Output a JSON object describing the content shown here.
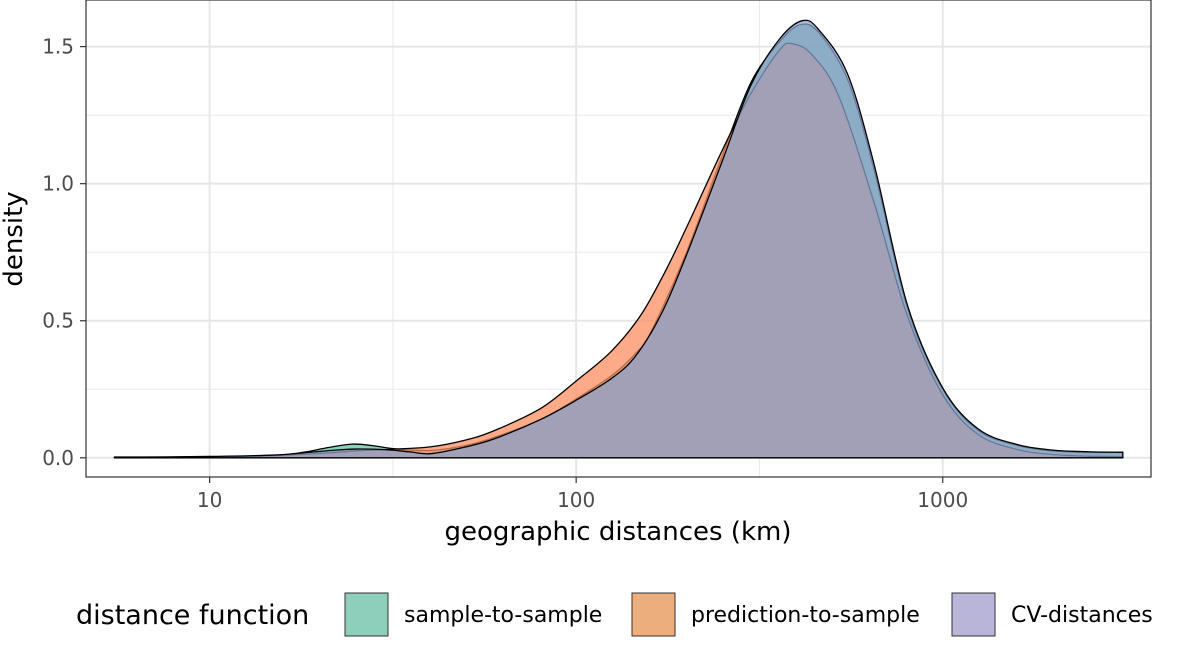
{
  "chart_data": {
    "type": "area",
    "title": "",
    "xlabel": "geographic distances (km)",
    "ylabel": "density",
    "x_scale": "log10",
    "xlim": [
      4.6,
      3700
    ],
    "ylim": [
      -0.07,
      1.67
    ],
    "x_ticks": [
      {
        "value": 10,
        "label": "10"
      },
      {
        "value": 100,
        "label": "100"
      },
      {
        "value": 1000,
        "label": "1000"
      }
    ],
    "y_ticks": [
      {
        "value": 0.0,
        "label": "0.0"
      },
      {
        "value": 0.5,
        "label": "0.5"
      },
      {
        "value": 1.0,
        "label": "1.0"
      },
      {
        "value": 1.5,
        "label": "1.5"
      }
    ],
    "grid": true,
    "legend": {
      "title": "distance function",
      "position": "bottom",
      "entries": [
        {
          "label": "sample-to-sample",
          "color": "#8ECFBC"
        },
        {
          "label": "prediction-to-sample",
          "color": "#EDAE7D"
        },
        {
          "label": "CV-distances",
          "color": "#B9B5D9"
        }
      ]
    },
    "series": [
      {
        "name": "sample-to-sample",
        "fill": "#66C2A5",
        "points": [
          [
            5.5,
            0.003
          ],
          [
            8,
            0.002
          ],
          [
            10,
            0.003
          ],
          [
            15,
            0.008
          ],
          [
            18,
            0.02
          ],
          [
            21,
            0.037
          ],
          [
            24.5,
            0.05
          ],
          [
            28,
            0.044
          ],
          [
            32,
            0.033
          ],
          [
            40,
            0.027
          ],
          [
            50,
            0.045
          ],
          [
            60,
            0.075
          ],
          [
            80,
            0.14
          ],
          [
            100,
            0.215
          ],
          [
            125,
            0.3
          ],
          [
            145,
            0.38
          ],
          [
            160,
            0.46
          ],
          [
            200,
            0.75
          ],
          [
            250,
            1.1
          ],
          [
            300,
            1.37
          ],
          [
            360,
            1.52
          ],
          [
            410,
            1.58
          ],
          [
            460,
            1.55
          ],
          [
            550,
            1.38
          ],
          [
            650,
            1.05
          ],
          [
            800,
            0.55
          ],
          [
            1000,
            0.25
          ],
          [
            1250,
            0.1
          ],
          [
            1600,
            0.045
          ],
          [
            2000,
            0.025
          ],
          [
            2500,
            0.02
          ],
          [
            3100,
            0.02
          ]
        ]
      },
      {
        "name": "prediction-to-sample",
        "fill": "#FC8D62",
        "points": [
          [
            5.5,
            0.002
          ],
          [
            10,
            0.003
          ],
          [
            15,
            0.008
          ],
          [
            20,
            0.016
          ],
          [
            25,
            0.025
          ],
          [
            30,
            0.03
          ],
          [
            40,
            0.04
          ],
          [
            50,
            0.065
          ],
          [
            60,
            0.1
          ],
          [
            80,
            0.18
          ],
          [
            100,
            0.28
          ],
          [
            125,
            0.39
          ],
          [
            150,
            0.52
          ],
          [
            175,
            0.68
          ],
          [
            200,
            0.84
          ],
          [
            250,
            1.12
          ],
          [
            300,
            1.33
          ],
          [
            360,
            1.49
          ],
          [
            390,
            1.51
          ],
          [
            440,
            1.47
          ],
          [
            520,
            1.32
          ],
          [
            650,
            0.93
          ],
          [
            800,
            0.52
          ],
          [
            1000,
            0.23
          ],
          [
            1250,
            0.085
          ],
          [
            1600,
            0.03
          ],
          [
            2000,
            0.012
          ],
          [
            2500,
            0.006
          ],
          [
            3100,
            0.004
          ]
        ]
      },
      {
        "name": "CV-distances",
        "fill": "#8DA0CB",
        "points": [
          [
            5.5,
            0.002
          ],
          [
            10,
            0.005
          ],
          [
            15,
            0.01
          ],
          [
            18,
            0.018
          ],
          [
            22,
            0.028
          ],
          [
            25,
            0.032
          ],
          [
            30,
            0.03
          ],
          [
            35,
            0.022
          ],
          [
            40,
            0.015
          ],
          [
            50,
            0.04
          ],
          [
            60,
            0.07
          ],
          [
            80,
            0.14
          ],
          [
            100,
            0.21
          ],
          [
            125,
            0.29
          ],
          [
            145,
            0.37
          ],
          [
            170,
            0.52
          ],
          [
            200,
            0.74
          ],
          [
            250,
            1.08
          ],
          [
            300,
            1.36
          ],
          [
            360,
            1.53
          ],
          [
            415,
            1.595
          ],
          [
            460,
            1.56
          ],
          [
            550,
            1.4
          ],
          [
            650,
            1.07
          ],
          [
            800,
            0.56
          ],
          [
            1000,
            0.255
          ],
          [
            1250,
            0.105
          ],
          [
            1600,
            0.048
          ],
          [
            2000,
            0.028
          ],
          [
            2500,
            0.022
          ],
          [
            3100,
            0.02
          ]
        ]
      }
    ]
  }
}
